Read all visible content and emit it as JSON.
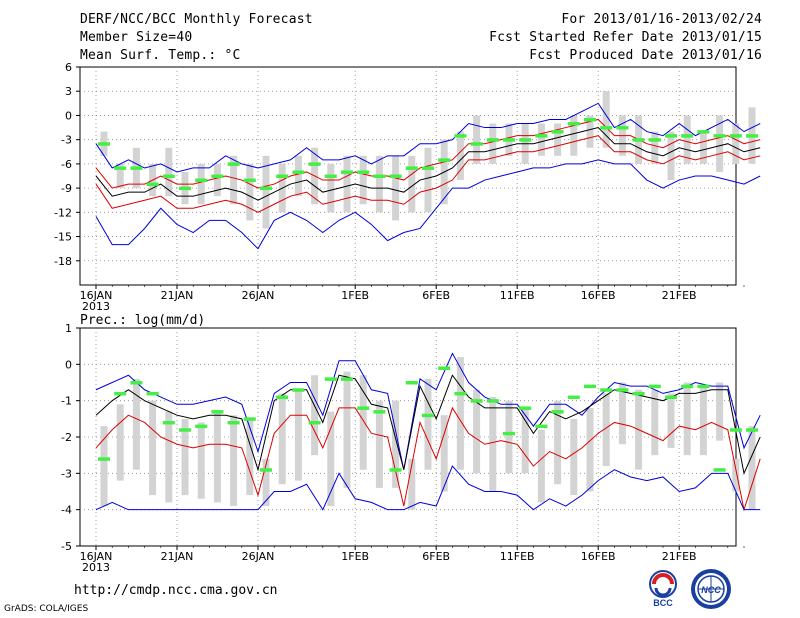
{
  "header": {
    "title": "DERF/NCC/BCC Monthly Forecast",
    "member_size": "Member Size=40",
    "variable": "Mean Surf. Temp.: °C",
    "period": "For 2013/01/16-2013/02/24",
    "start_date": "Fcst Started Refer Date 2013/01/15",
    "produced_date": "Fcst Produced Date 2013/01/16"
  },
  "footer": {
    "url": "http://cmdp.ncc.cma.gov.cn",
    "grads": "GrADS: COLA/IGES",
    "logo_bcc": "BCC",
    "logo_ncc": "NCC"
  },
  "colors": {
    "ensemble_bar": "#d3d3d3",
    "member_marker": "#44ee44",
    "mean_line": "#000000",
    "spread_line": "#dd0000",
    "envelope_line": "#0000dd",
    "grid": "#888888"
  },
  "chart_data": [
    {
      "type": "line",
      "title": "",
      "ylabel": "Mean Surf. Temp.: °C",
      "ylim": [
        -21,
        6
      ],
      "yticks": [
        6,
        3,
        0,
        -3,
        -6,
        -9,
        -12,
        -15,
        -18
      ],
      "x_tick_labels": [
        {
          "day": 0,
          "label": "16JAN",
          "sub": "2013"
        },
        {
          "day": 5,
          "label": "21JAN"
        },
        {
          "day": 10,
          "label": "26JAN"
        },
        {
          "day": 16,
          "label": "1FEB"
        },
        {
          "day": 21,
          "label": "6FEB"
        },
        {
          "day": 26,
          "label": "11FEB"
        },
        {
          "day": 31,
          "label": "16FEB"
        },
        {
          "day": 36,
          "label": "21FEB"
        }
      ],
      "days": 40,
      "series": [
        {
          "name": "max",
          "values": [
            -3.5,
            -6.5,
            -5.5,
            -6.5,
            -6,
            -7,
            -6.5,
            -6.5,
            -5,
            -6,
            -6.5,
            -6,
            -5.5,
            -4,
            -5.5,
            -5.5,
            -5,
            -6,
            -5,
            -5,
            -3.5,
            -3.5,
            -3,
            -1,
            -1.5,
            -1.5,
            -1,
            -1,
            -0.5,
            -0.5,
            0.5,
            1.5,
            -1.5,
            -0.5,
            -2,
            -2.5,
            -1,
            -2.5,
            -1.5,
            -0.5,
            -2,
            -1
          ]
        },
        {
          "name": "spread_upper",
          "values": [
            -6.5,
            -9,
            -8.5,
            -8.5,
            -7.5,
            -8.5,
            -8.5,
            -8,
            -7.5,
            -8,
            -9,
            -8.5,
            -7.5,
            -7,
            -8,
            -8,
            -7,
            -7.5,
            -7.5,
            -8,
            -6.5,
            -6,
            -5.5,
            -3.5,
            -3.5,
            -3,
            -2.5,
            -2.5,
            -2,
            -1.5,
            -1,
            -0.5,
            -2.5,
            -2.5,
            -3.5,
            -4,
            -3,
            -3.5,
            -3,
            -2.5,
            -3.5,
            -3
          ]
        },
        {
          "name": "mean",
          "values": [
            -7.5,
            -10,
            -9.5,
            -9.5,
            -8.5,
            -10,
            -10,
            -9.5,
            -9,
            -9.5,
            -10.5,
            -9.5,
            -8.5,
            -8,
            -9.5,
            -9,
            -8.5,
            -9,
            -9,
            -9.5,
            -8,
            -7.5,
            -6.5,
            -4.5,
            -4.5,
            -4,
            -3.5,
            -3.5,
            -3,
            -2.5,
            -2,
            -1.5,
            -3.5,
            -3.5,
            -4.5,
            -5,
            -4,
            -4.5,
            -4,
            -3.5,
            -4.5,
            -4
          ]
        },
        {
          "name": "spread_lower",
          "values": [
            -8.5,
            -11.5,
            -11,
            -10.5,
            -10,
            -11.5,
            -11.5,
            -11,
            -10.5,
            -11,
            -12,
            -11,
            -10,
            -9.5,
            -11,
            -10.5,
            -10,
            -10.5,
            -10.5,
            -11,
            -9.5,
            -9,
            -8,
            -5.5,
            -5.5,
            -5,
            -4.5,
            -4.5,
            -4,
            -3.5,
            -3,
            -2.5,
            -4.5,
            -4.5,
            -5.5,
            -6,
            -5,
            -5.5,
            -5,
            -4.5,
            -5.5,
            -5
          ]
        },
        {
          "name": "min",
          "values": [
            -12.5,
            -16,
            -16,
            -14,
            -11.5,
            -13.5,
            -14.5,
            -13,
            -13,
            -14.5,
            -16.5,
            -13,
            -12,
            -13,
            -14.5,
            -13,
            -12,
            -13.5,
            -15.5,
            -14.5,
            -14,
            -11.5,
            -9,
            -9,
            -8,
            -7.5,
            -7,
            -6.5,
            -6.5,
            -6,
            -6,
            -5.5,
            -6,
            -6,
            -8,
            -9,
            -8,
            -7.5,
            -7.5,
            -8,
            -8.5,
            -7.5
          ]
        }
      ],
      "bars": [
        [
          -2,
          -5
        ],
        [
          -6,
          -9
        ],
        [
          -4,
          -9
        ],
        [
          -6,
          -10
        ],
        [
          -4,
          -10
        ],
        [
          -7,
          -11
        ],
        [
          -6,
          -11
        ],
        [
          -6,
          -10
        ],
        [
          -5,
          -11
        ],
        [
          -6,
          -13
        ],
        [
          -5,
          -14
        ],
        [
          -6,
          -12
        ],
        [
          -5,
          -10
        ],
        [
          -4,
          -11
        ],
        [
          -6,
          -12
        ],
        [
          -5,
          -12
        ],
        [
          -5,
          -11
        ],
        [
          -5,
          -12
        ],
        [
          -5,
          -13
        ],
        [
          -5,
          -12
        ],
        [
          -4,
          -12
        ],
        [
          -3,
          -11
        ],
        [
          -2,
          -8
        ],
        [
          0,
          -6
        ],
        [
          -1,
          -6
        ],
        [
          -1,
          -5
        ],
        [
          -1,
          -6
        ],
        [
          -1,
          -5
        ],
        [
          -1,
          -5
        ],
        [
          0,
          -5
        ],
        [
          0,
          -4
        ],
        [
          3,
          -4
        ],
        [
          0,
          -5
        ],
        [
          0,
          -6
        ],
        [
          -2,
          -6
        ],
        [
          -2,
          -8
        ],
        [
          0,
          -6
        ],
        [
          -2,
          -6
        ],
        [
          0,
          -7
        ],
        [
          -1,
          -6
        ],
        [
          1,
          -6
        ]
      ],
      "markers": [
        -3.5,
        -6.5,
        -6.5,
        -8.5,
        -7.5,
        -9,
        -8,
        -7.5,
        -6,
        -8,
        -9,
        -7.5,
        -7,
        -6,
        -7.5,
        -7,
        -7,
        -7.5,
        -7.5,
        -6.5,
        -6.5,
        -5.5,
        -2.5,
        -3.5,
        -3,
        -3,
        -3,
        -2.5,
        -2,
        -1,
        -0.5,
        -1.5,
        -1.5,
        -3,
        -3,
        -2.5,
        -2.5,
        -2,
        -2.5,
        -2.5,
        -2.5
      ]
    },
    {
      "type": "line",
      "title": "Prec.: log(mm/d)",
      "ylabel": "Prec.: log(mm/d)",
      "ylim": [
        -5,
        1
      ],
      "yticks": [
        1,
        0,
        -1,
        -2,
        -3,
        -4,
        -5
      ],
      "x_tick_labels": [
        {
          "day": 0,
          "label": "16JAN",
          "sub": "2013"
        },
        {
          "day": 5,
          "label": "21JAN"
        },
        {
          "day": 10,
          "label": "26JAN"
        },
        {
          "day": 16,
          "label": "1FEB"
        },
        {
          "day": 21,
          "label": "6FEB"
        },
        {
          "day": 26,
          "label": "11FEB"
        },
        {
          "day": 31,
          "label": "16FEB"
        },
        {
          "day": 36,
          "label": "21FEB"
        }
      ],
      "days": 40,
      "series": [
        {
          "name": "max",
          "values": [
            -0.7,
            -0.5,
            -0.3,
            -0.7,
            -0.9,
            -1.1,
            -1.1,
            -1,
            -0.9,
            -1.1,
            -2.4,
            -0.8,
            -0.5,
            -0.5,
            -1.4,
            0.1,
            0.1,
            -0.7,
            -0.8,
            -2.9,
            -0.4,
            -0.7,
            0.3,
            -0.5,
            -0.9,
            -1.1,
            -1.1,
            -1.7,
            -1.1,
            -1.1,
            -1.4,
            -0.9,
            -0.5,
            -0.6,
            -0.6,
            -0.8,
            -0.7,
            -0.5,
            -0.6,
            -0.6,
            -2.3,
            -1.4
          ]
        },
        {
          "name": "mean",
          "values": [
            -1.4,
            -1,
            -0.7,
            -1,
            -1.2,
            -1.4,
            -1.5,
            -1.4,
            -1.4,
            -1.5,
            -2.9,
            -1,
            -0.7,
            -0.7,
            -1.6,
            -0.3,
            -0.4,
            -1.1,
            -1.2,
            -2.9,
            -0.6,
            -1.5,
            -0.3,
            -0.9,
            -1.2,
            -1.2,
            -1.2,
            -1.9,
            -1.3,
            -1.5,
            -1.3,
            -1,
            -0.7,
            -0.8,
            -0.9,
            -1,
            -0.8,
            -0.8,
            -0.7,
            -0.7,
            -3,
            -2
          ]
        },
        {
          "name": "lower_red",
          "values": [
            -2.3,
            -1.8,
            -1.4,
            -1.6,
            -2,
            -2.2,
            -2.3,
            -2.2,
            -2.2,
            -2.3,
            -3.6,
            -1.9,
            -1.4,
            -1.4,
            -2.3,
            -1.2,
            -1.2,
            -1.9,
            -2,
            -3.9,
            -1.6,
            -2.6,
            -1.2,
            -1.9,
            -2.2,
            -2.1,
            -2.2,
            -2.8,
            -2.4,
            -2.6,
            -2.3,
            -1.9,
            -1.6,
            -1.7,
            -1.9,
            -2.1,
            -1.7,
            -1.8,
            -1.6,
            -1.8,
            -4,
            -2.6
          ]
        },
        {
          "name": "min",
          "values": [
            -4,
            -3.8,
            -4,
            -4,
            -4,
            -4,
            -4,
            -4,
            -4,
            -4,
            -4,
            -3.5,
            -3.5,
            -3.3,
            -4,
            -3,
            -3.7,
            -3.8,
            -4,
            -4,
            -3.8,
            -3.9,
            -2.8,
            -3.3,
            -3.5,
            -3.5,
            -3.6,
            -4,
            -3.7,
            -3.9,
            -3.6,
            -3.2,
            -2.9,
            -3.1,
            -3.2,
            -3.1,
            -3.5,
            -3.4,
            -3,
            -3,
            -4,
            -4
          ]
        }
      ],
      "bars": [
        [
          -1.7,
          -3.9
        ],
        [
          -1.1,
          -3.2
        ],
        [
          -0.4,
          -2.9
        ],
        [
          -1,
          -3.6
        ],
        [
          -1.3,
          -3.8
        ],
        [
          -1.5,
          -3.6
        ],
        [
          -1.6,
          -3.7
        ],
        [
          -1.3,
          -3.8
        ],
        [
          -1.4,
          -3.9
        ],
        [
          -1.5,
          -3.6
        ],
        [
          -2.6,
          -3.9
        ],
        [
          -0.8,
          -3.3
        ],
        [
          -0.7,
          -3.2
        ],
        [
          -0.3,
          -2.5
        ],
        [
          -1.3,
          -3.9
        ],
        [
          -0.2,
          -3.4
        ],
        [
          -0.3,
          -2.9
        ],
        [
          -1,
          -3.4
        ],
        [
          -1,
          -3.4
        ],
        [
          -2.6,
          -4
        ],
        [
          -0.4,
          -2.9
        ],
        [
          -1.4,
          -3.5
        ],
        [
          0.2,
          -2.9
        ],
        [
          -0.7,
          -3
        ],
        [
          -0.9,
          -3.5
        ],
        [
          -1,
          -3
        ],
        [
          -1.2,
          -3
        ],
        [
          -1.8,
          -3.8
        ],
        [
          -1,
          -3.3
        ],
        [
          -1.5,
          -3.6
        ],
        [
          -1.2,
          -3.5
        ],
        [
          -0.8,
          -2.8
        ],
        [
          -0.5,
          -2.2
        ],
        [
          -0.7,
          -2.9
        ],
        [
          -0.7,
          -2.5
        ],
        [
          -0.8,
          -2.3
        ],
        [
          -0.5,
          -2.5
        ],
        [
          -0.6,
          -2.5
        ],
        [
          -0.5,
          -2.1
        ],
        [
          -2.6,
          -3.5
        ],
        [
          -1.7,
          -4
        ]
      ],
      "markers": [
        -2.6,
        -0.8,
        -0.5,
        -0.8,
        -1.6,
        -1.8,
        -1.7,
        -1.3,
        -1.6,
        -1.5,
        -2.9,
        -0.9,
        -0.7,
        -1.6,
        -0.4,
        -0.4,
        -1.2,
        -1.3,
        -2.9,
        -0.5,
        -1.4,
        -0.1,
        -0.8,
        -1,
        -1,
        -1.9,
        -1.2,
        -1.7,
        -1.3,
        -0.9,
        -0.6,
        -0.7,
        -0.7,
        -0.8,
        -0.6,
        -0.9,
        -0.6,
        -0.6,
        -2.9,
        -1.8,
        -1.8
      ]
    }
  ]
}
